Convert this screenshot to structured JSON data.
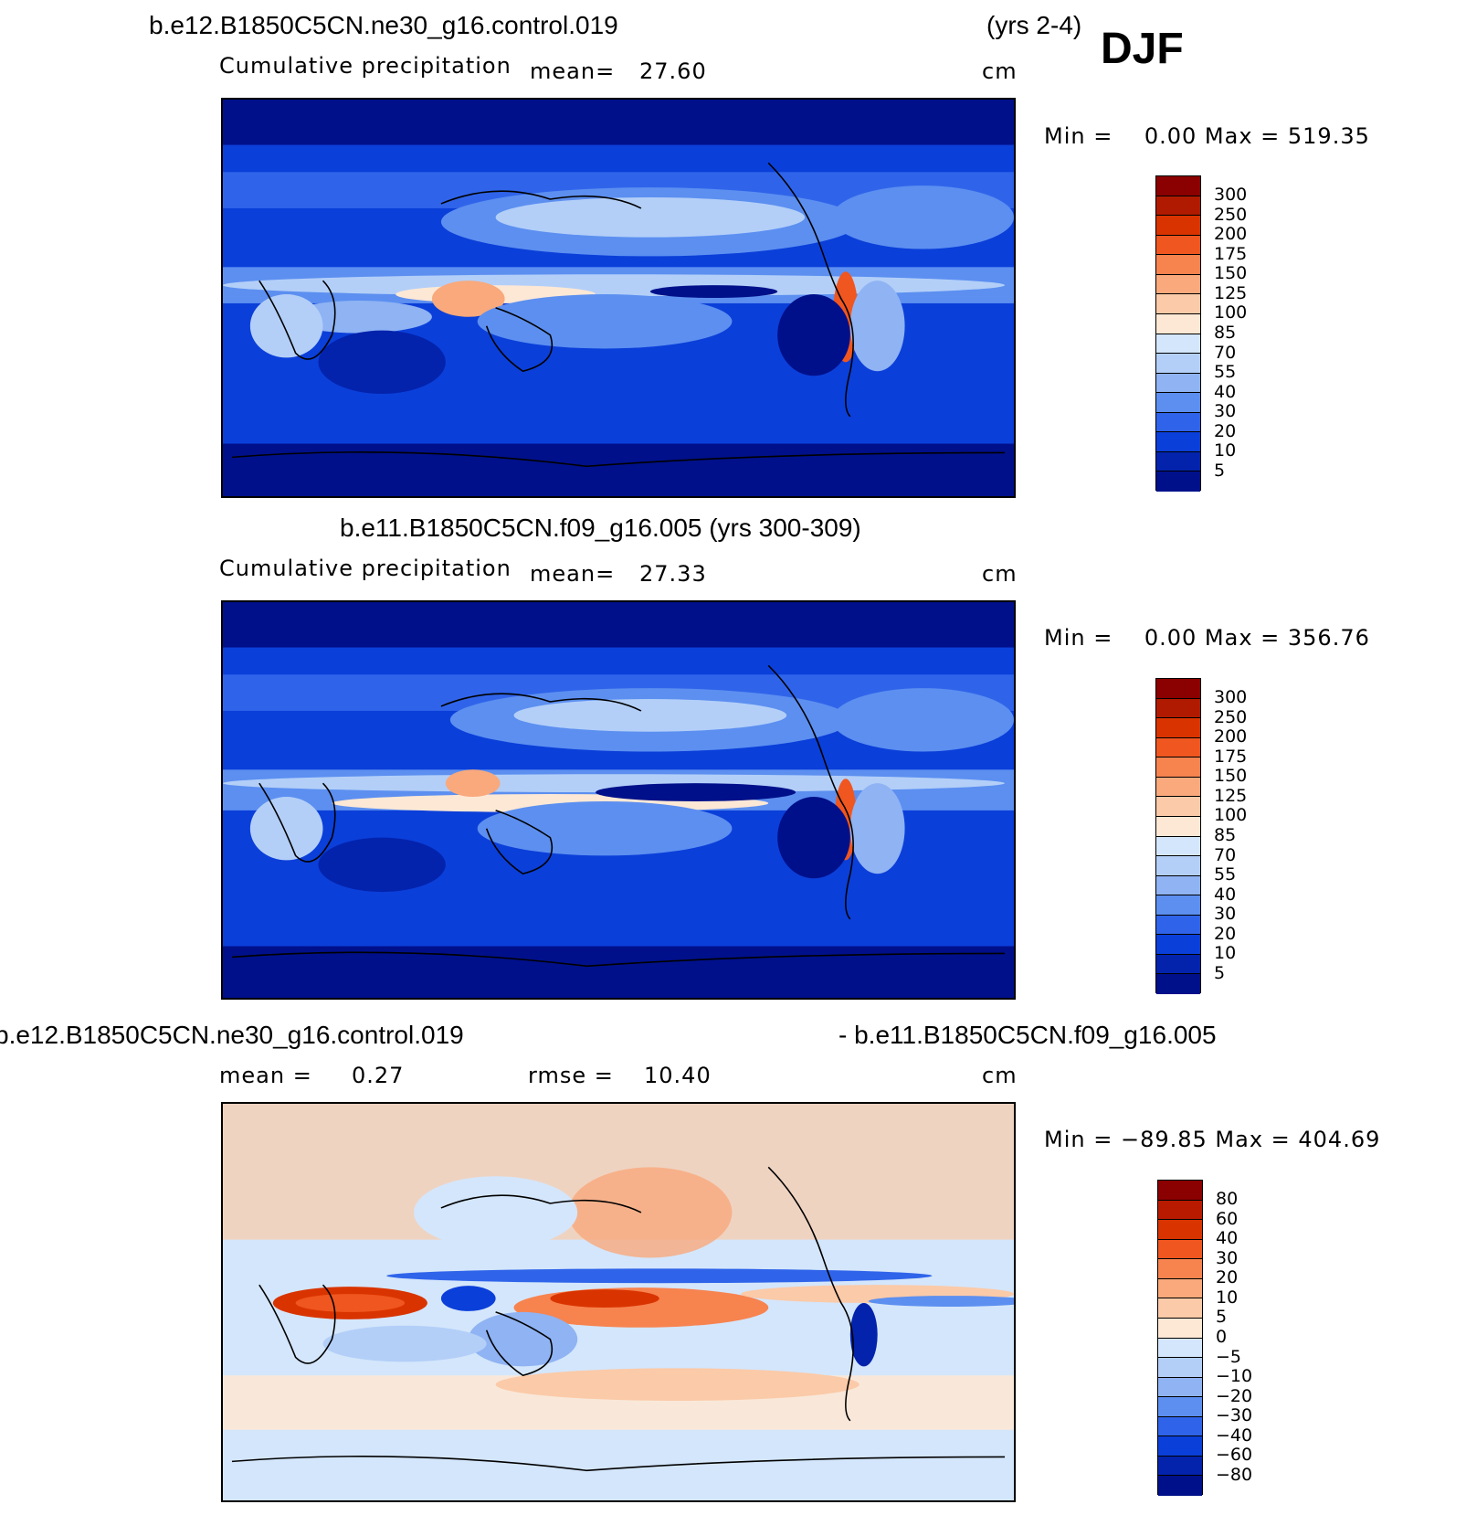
{
  "season": "DJF",
  "panels": [
    {
      "title_left": "b.e12.B1850C5CN.ne30_g16.control.019",
      "title_right": "(yrs 2-4)",
      "variable": "Cumulative precipitation",
      "stat1_label": "mean=",
      "stat1_value": "27.60",
      "stat2_label": "",
      "stat2_value": "",
      "units": "cm",
      "minmax": "Min =    0.00 Max = 519.35",
      "colorbar": {
        "ticks": [
          "300",
          "250",
          "200",
          "175",
          "150",
          "125",
          "100",
          "85",
          "70",
          "55",
          "40",
          "30",
          "20",
          "10",
          "5"
        ],
        "colors": [
          "#8b0000",
          "#b01a00",
          "#d93400",
          "#f0561f",
          "#f7834f",
          "#f9a97c",
          "#fbcaa8",
          "#fde8d5",
          "#d4e6fb",
          "#b3cff8",
          "#8fb3f3",
          "#5c8ff0",
          "#2f64ea",
          "#0b3fd9",
          "#0323ad",
          "#00108a"
        ]
      }
    },
    {
      "title_left": "b.e11.B1850C5CN.f09_g16.005 (yrs 300-309)",
      "title_right": "",
      "variable": "Cumulative precipitation",
      "stat1_label": "mean=",
      "stat1_value": "27.33",
      "stat2_label": "",
      "stat2_value": "",
      "units": "cm",
      "minmax": "Min =    0.00 Max = 356.76",
      "colorbar": {
        "ticks": [
          "300",
          "250",
          "200",
          "175",
          "150",
          "125",
          "100",
          "85",
          "70",
          "55",
          "40",
          "30",
          "20",
          "10",
          "5"
        ],
        "colors": [
          "#8b0000",
          "#b01a00",
          "#d93400",
          "#f0561f",
          "#f7834f",
          "#f9a97c",
          "#fbcaa8",
          "#fde8d5",
          "#d4e6fb",
          "#b3cff8",
          "#8fb3f3",
          "#5c8ff0",
          "#2f64ea",
          "#0b3fd9",
          "#0323ad",
          "#00108a"
        ]
      }
    },
    {
      "title_left": "b.e12.B1850C5CN.ne30_g16.control.019",
      "title_right": "- b.e11.B1850C5CN.f09_g16.005",
      "variable": "",
      "stat1_label": "mean =",
      "stat1_value": "0.27",
      "stat2_label": "rmse =",
      "stat2_value": "10.40",
      "units": "cm",
      "minmax": "Min = −89.85 Max = 404.69",
      "colorbar": {
        "ticks": [
          "80",
          "60",
          "40",
          "30",
          "20",
          "10",
          "5",
          "0",
          "−5",
          "−10",
          "−20",
          "−30",
          "−40",
          "−60",
          "−80"
        ],
        "colors": [
          "#8b0000",
          "#b81a00",
          "#d93400",
          "#f0561f",
          "#f7834f",
          "#f9a97c",
          "#fbcaa8",
          "#fde8d5",
          "#d4e6fb",
          "#b3cff8",
          "#8fb3f3",
          "#5c8ff0",
          "#2f64ea",
          "#0b3fd9",
          "#0323ad",
          "#00108a"
        ]
      }
    }
  ]
}
